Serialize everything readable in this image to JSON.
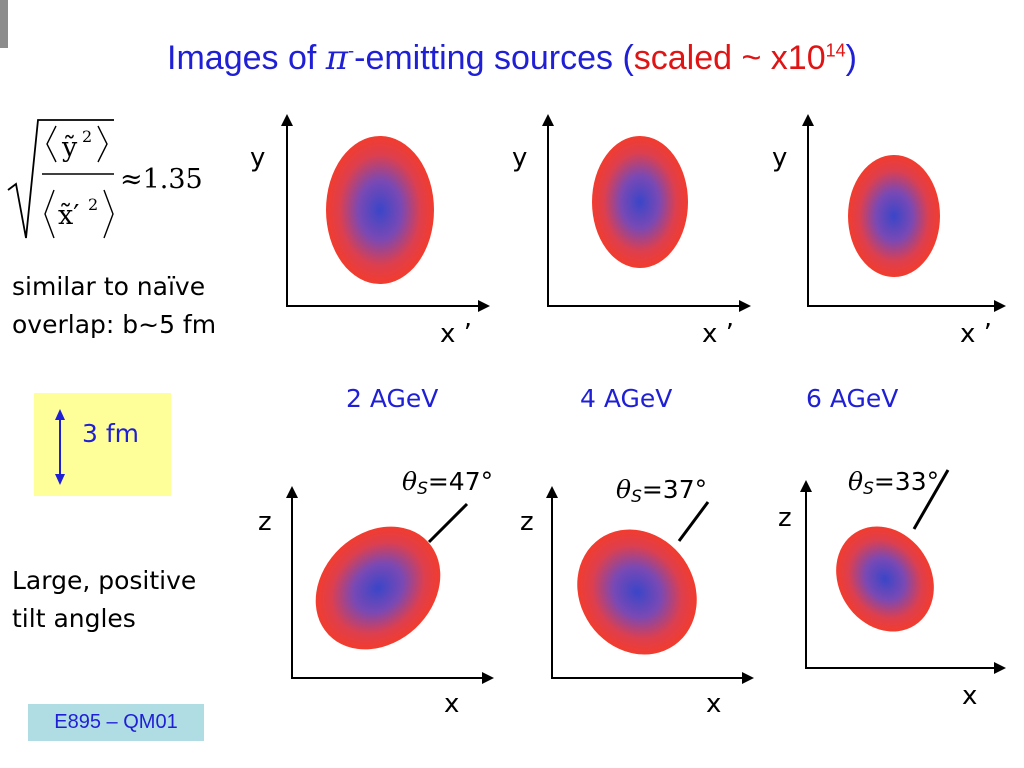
{
  "title": {
    "prefix": "Images of ",
    "symbol": "π",
    "superscript": "-",
    "middle": "-emitting sources (",
    "scaled": "scaled ~ x10",
    "exponent": "14",
    "suffix": ")"
  },
  "formula": {
    "numerator_var": "ỹ",
    "numerator_power": "2",
    "denominator_var": "x̃′",
    "denominator_power": "2",
    "relation": "≈1.35"
  },
  "notes": {
    "similar_line1": "similar to naïve",
    "similar_line2": "overlap: b~5 fm",
    "tilt_line1": "Large, positive",
    "tilt_line2": "tilt angles"
  },
  "scale_bar": {
    "label": "3 fm"
  },
  "energies": [
    "2 AGeV",
    "4 AGeV",
    "6 AGeV"
  ],
  "top_plots": [
    {
      "ylabel": "y",
      "xlabel": "x ’"
    },
    {
      "ylabel": "y",
      "xlabel": "x ’"
    },
    {
      "ylabel": "y",
      "xlabel": "x ’"
    }
  ],
  "bottom_plots": [
    {
      "ylabel": "z",
      "xlabel": "x",
      "theta": "θ",
      "sub": "S",
      "angle": "=47°"
    },
    {
      "ylabel": "z",
      "xlabel": "x",
      "theta": "θ",
      "sub": "S",
      "angle": "=37°"
    },
    {
      "ylabel": "z",
      "xlabel": "x",
      "theta": "θ",
      "sub": "S",
      "angle": "=33°"
    }
  ],
  "footer": {
    "label": "E895 – QM01"
  },
  "colors": {
    "title_blue": "#1f1fd6",
    "title_red": "#e01414",
    "source_edge": "#f23c2e",
    "source_core": "#3a46c8",
    "scale_box": "#ffff99",
    "footer_box": "#b0dde4"
  }
}
